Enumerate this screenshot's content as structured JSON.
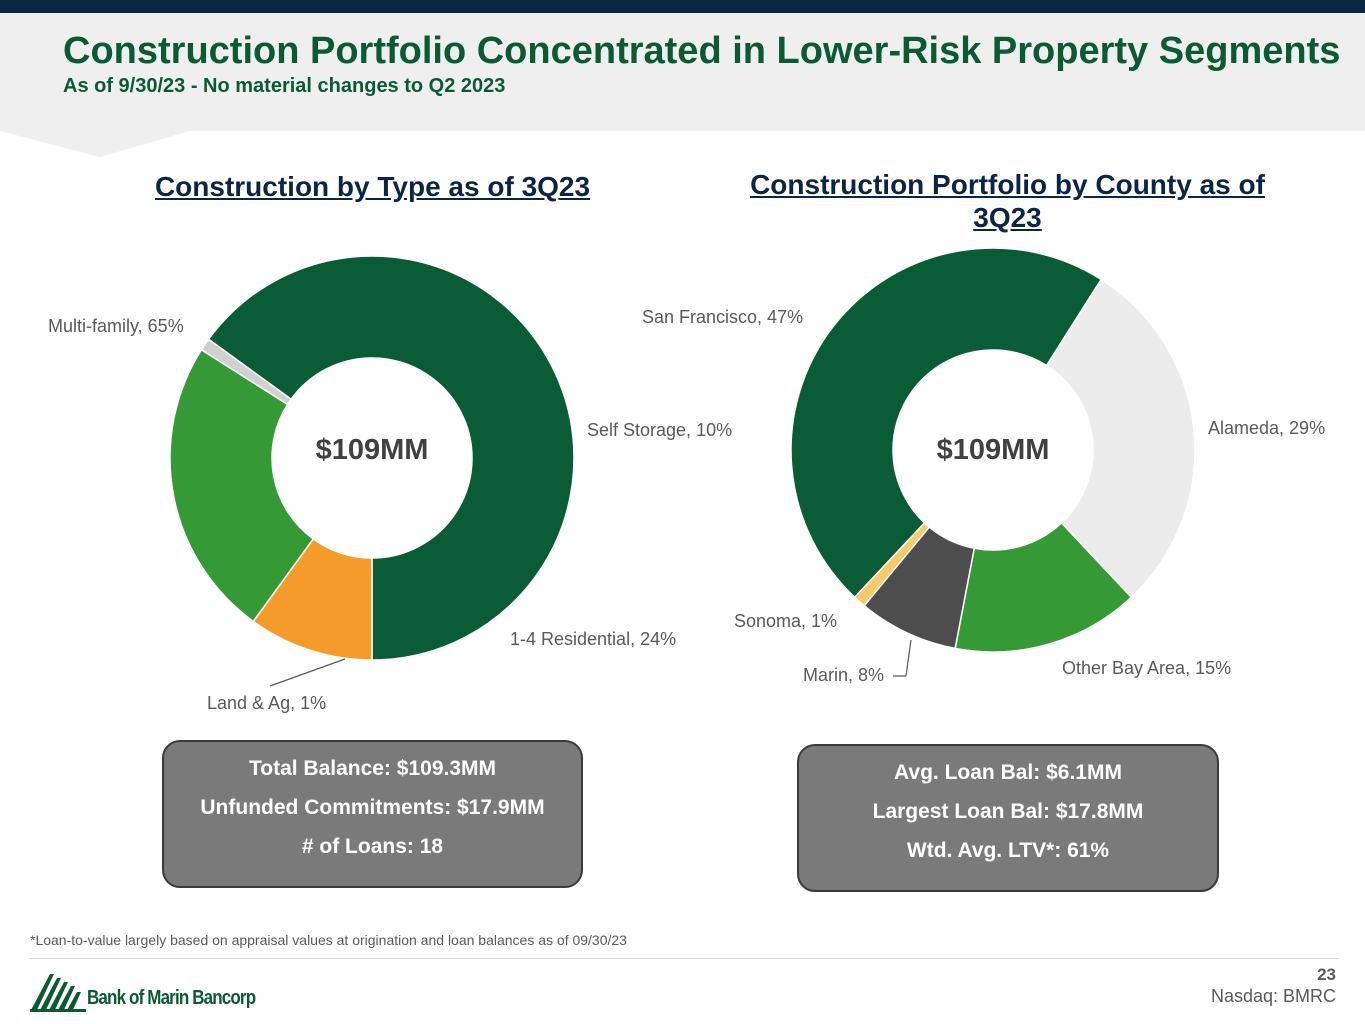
{
  "slide": {
    "title": "Construction Portfolio Concentrated in Lower-Risk Property Segments",
    "subtitle": "As of 9/30/23 - No material changes to Q2 2023"
  },
  "chart_data": [
    {
      "type": "pie",
      "title": "Construction by Type as of 3Q23",
      "center_label": "$109MM",
      "categories": [
        "Multi-family",
        "Self Storage",
        "1-4 Residential",
        "Land & Ag"
      ],
      "values": [
        65,
        10,
        24,
        1
      ],
      "labels": [
        "Multi-family, 65%",
        "Self Storage, 10%",
        "1-4 Residential, 24%",
        "Land & Ag, 1%"
      ],
      "colors": [
        "#0a5c36",
        "#f59b2b",
        "#359a35",
        "#d0d0d0"
      ]
    },
    {
      "type": "pie",
      "title": "Construction Portfolio by County as of 3Q23",
      "center_label": "$109MM",
      "categories": [
        "San Francisco",
        "Alameda",
        "Other Bay Area",
        "Marin",
        "Sonoma"
      ],
      "values": [
        47,
        29,
        15,
        8,
        1
      ],
      "labels": [
        "San Francisco, 47%",
        "Alameda, 29%",
        "Other Bay Area, 15%",
        "Marin, 8%",
        "Sonoma, 1%"
      ],
      "colors": [
        "#0a5c36",
        "#ececec",
        "#359a35",
        "#4d4d4d",
        "#f7c96a"
      ]
    }
  ],
  "left_stats": [
    "Total Balance: $109.3MM",
    "Unfunded Commitments: $17.9MM",
    "# of Loans: 18"
  ],
  "right_stats": [
    "Avg. Loan Bal: $6.1MM",
    "Largest Loan Bal: $17.8MM",
    "Wtd. Avg. LTV*: 61%"
  ],
  "footnote": "*Loan-to-value largely based on appraisal values at origination and loan balances as of 09/30/23",
  "footer": {
    "page_number": "23",
    "ticker": "Nasdaq: BMRC",
    "logo_text": "Bank of Marin Bancorp"
  }
}
